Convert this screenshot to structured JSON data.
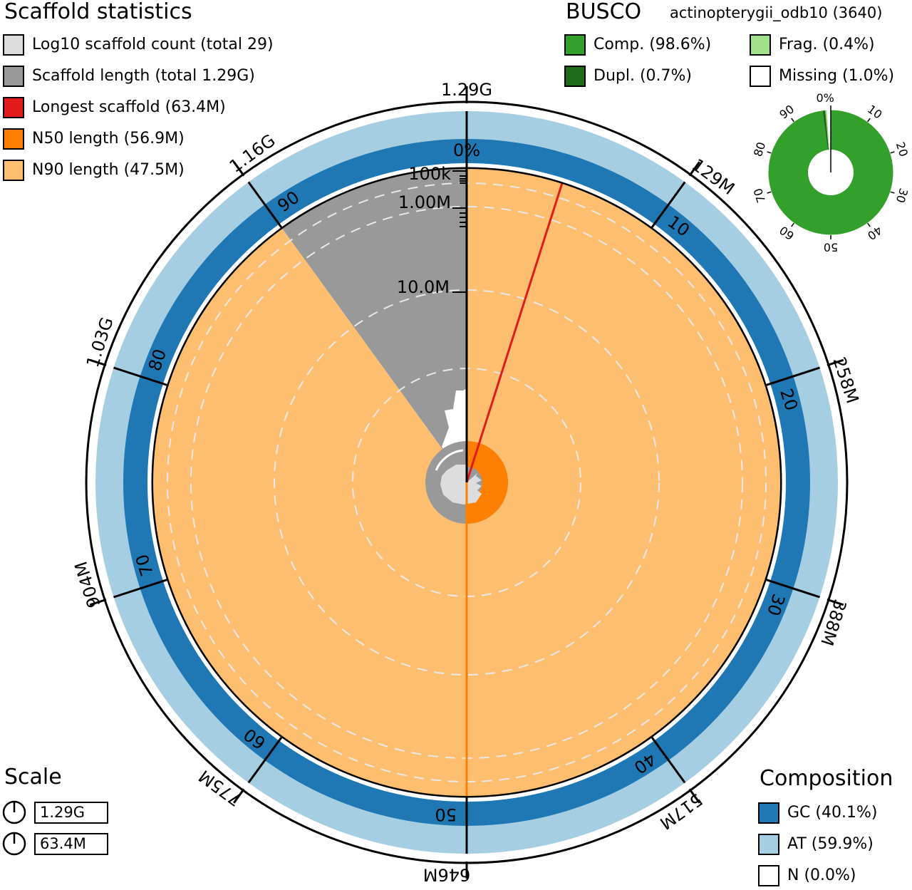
{
  "scaffold_stats": {
    "title": "Scaffold statistics",
    "legend": [
      {
        "label": "Log10 scaffold count (total 29)",
        "color": "#dddddd"
      },
      {
        "label": "Scaffold length (total 1.29G)",
        "color": "#999999"
      },
      {
        "label": "Longest scaffold (63.4M)",
        "color": "#e31a1c"
      },
      {
        "label": "N50 length (56.9M)",
        "color": "#ff7f00"
      },
      {
        "label": "N90 length (47.5M)",
        "color": "#fdbf6f"
      }
    ]
  },
  "busco": {
    "title": "BUSCO",
    "subtitle": "actinopterygii_odb10 (3640)",
    "legend": [
      {
        "label": "Comp. (98.6%)",
        "color": "#33a02c"
      },
      {
        "label": "Frag. (0.4%)",
        "color": "#a3e28c"
      },
      {
        "label": "Dupl. (0.7%)",
        "color": "#1e6b1a"
      },
      {
        "label": "Missing (1.0%)",
        "color": "#ffffff"
      }
    ],
    "ticks": [
      "0%",
      "10",
      "20",
      "30",
      "40",
      "50",
      "60",
      "70",
      "80",
      "90"
    ]
  },
  "scale": {
    "title": "Scale",
    "items": [
      {
        "label": "1.29G"
      },
      {
        "label": "63.4M"
      }
    ]
  },
  "composition": {
    "title": "Composition",
    "legend": [
      {
        "label": "GC (40.1%)",
        "color": "#1f78b4"
      },
      {
        "label": "AT (59.9%)",
        "color": "#a6cee3"
      },
      {
        "label": "N (0.0%)",
        "color": "#ffffff"
      }
    ]
  },
  "chart_data": {
    "type": "snail",
    "total_length_bp": 1290000000,
    "scaffold_count": 29,
    "longest_scaffold": 63400000,
    "n50": 56900000,
    "n90": 47500000,
    "length_tick_labels": [
      {
        "label": "1.29G",
        "position": 0
      },
      {
        "label": "129M",
        "position": 10
      },
      {
        "label": "258M",
        "position": 20
      },
      {
        "label": "388M",
        "position": 30
      },
      {
        "label": "517M",
        "position": 40
      },
      {
        "label": "646M",
        "position": 50
      },
      {
        "label": "775M",
        "position": 60
      },
      {
        "label": "904M",
        "position": 70
      },
      {
        "label": "1.03G",
        "position": 80
      },
      {
        "label": "1.16G",
        "position": 90
      }
    ],
    "percent_tick_labels": [
      {
        "label": "0%",
        "position": 0
      },
      {
        "label": "10",
        "position": 10
      },
      {
        "label": "20",
        "position": 20
      },
      {
        "label": "30",
        "position": 30
      },
      {
        "label": "40",
        "position": 40
      },
      {
        "label": "50",
        "position": 50
      },
      {
        "label": "60",
        "position": 60
      },
      {
        "label": "70",
        "position": 70
      },
      {
        "label": "80",
        "position": 80
      },
      {
        "label": "90",
        "position": 90
      }
    ],
    "radial_scale_labels": [
      "100k",
      "1.00M",
      "10.0M"
    ],
    "n90_percent": 90,
    "busco_percentages": {
      "complete": 98.6,
      "duplicated": 0.7,
      "fragmented": 0.4,
      "missing": 1.0
    },
    "composition_percentages": {
      "gc": 40.1,
      "at": 59.9,
      "n": 0.0
    }
  }
}
